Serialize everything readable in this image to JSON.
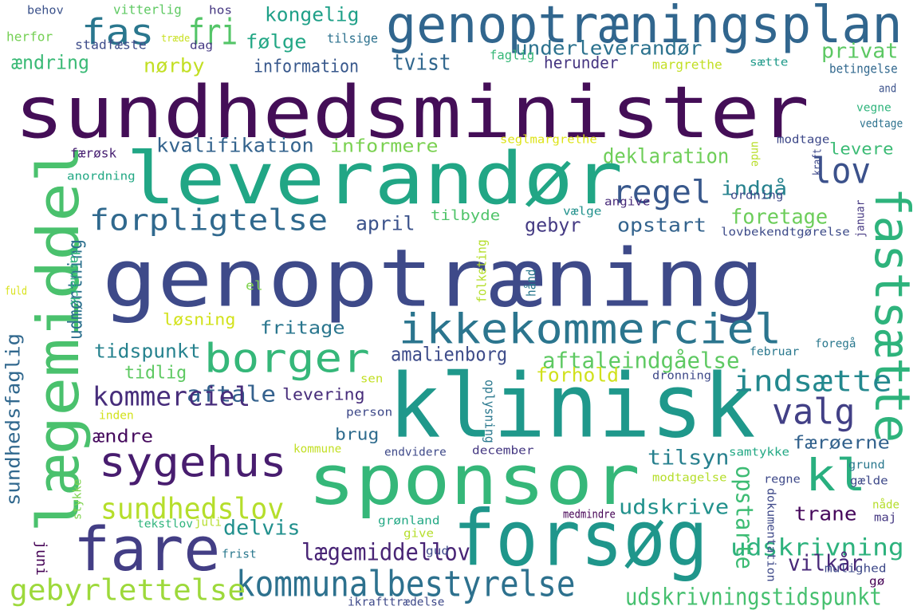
{
  "words": [
    {
      "text": "sundhedsminister",
      "color": "#440e57"
    },
    {
      "text": "genoptræning",
      "color": "#3e4a89"
    },
    {
      "text": "klinisk",
      "color": "#1f988b"
    },
    {
      "text": "sponsor",
      "color": "#35b779"
    },
    {
      "text": "leverandør",
      "color": "#21a685"
    },
    {
      "text": "forsøg",
      "color": "#1f968b"
    },
    {
      "text": "genoptræningsplan",
      "color": "#31668e"
    },
    {
      "text": "fare",
      "color": "#433e85"
    },
    {
      "text": "lægemiddel",
      "color": "#4ac16d"
    },
    {
      "text": "ikkekommerciel",
      "color": "#2b758e"
    },
    {
      "text": "sygehus",
      "color": "#481d6f"
    },
    {
      "text": "fastsætte",
      "color": "#2eb37c"
    },
    {
      "text": "borger",
      "color": "#35b779"
    },
    {
      "text": "kl",
      "color": "#29af7f"
    },
    {
      "text": "forpligtelse",
      "color": "#30698e"
    },
    {
      "text": "kommunalbestyrelse",
      "color": "#2d718e"
    },
    {
      "text": "lov",
      "color": "#3b518b"
    },
    {
      "text": "regel",
      "color": "#38588c"
    },
    {
      "text": "gebyrlettelse",
      "color": "#9dd93b"
    },
    {
      "text": "valg",
      "color": "#424086"
    },
    {
      "text": "sundhedslov",
      "color": "#b5de2b"
    },
    {
      "text": "fas",
      "color": "#2a778e"
    },
    {
      "text": "fri",
      "color": "#54c568"
    },
    {
      "text": "aftale",
      "color": "#34618d"
    },
    {
      "text": "kommerciel",
      "color": "#472d7b"
    },
    {
      "text": "indsætte",
      "color": "#23888e"
    },
    {
      "text": "udskrivning",
      "color": "#2db27d"
    },
    {
      "text": "udskrivningstidspunkt",
      "color": "#46c06f"
    },
    {
      "text": "udskrive",
      "color": "#21918c"
    },
    {
      "text": "lægemiddellov",
      "color": "#482475"
    },
    {
      "text": "delvis",
      "color": "#21908d"
    },
    {
      "text": "tidspunkt",
      "color": "#26828e"
    },
    {
      "text": "sundhedsfaglig",
      "color": "#31688e"
    },
    {
      "text": "vilkår",
      "color": "#482878"
    },
    {
      "text": "kvalifikation",
      "color": "#33638d"
    },
    {
      "text": "aftaleindgåelse",
      "color": "#5ec962"
    },
    {
      "text": "underleverandør",
      "color": "#2c728e"
    },
    {
      "text": "opstarte",
      "color": "#3dbc74"
    },
    {
      "text": "tilsyn",
      "color": "#27808e"
    },
    {
      "text": "foretage",
      "color": "#6ccd5a"
    },
    {
      "text": "deklaration",
      "color": "#6ece58"
    },
    {
      "text": "amalienborg",
      "color": "#3e4c8a"
    },
    {
      "text": "forhold",
      "color": "#d0e11c"
    },
    {
      "text": "kongelig",
      "color": "#1fa088"
    },
    {
      "text": "følge",
      "color": "#22a785"
    },
    {
      "text": "tvist",
      "color": "#31678e"
    },
    {
      "text": "privat",
      "color": "#5cc863"
    },
    {
      "text": "ændring",
      "color": "#3aba76"
    },
    {
      "text": "nørby",
      "color": "#c2df23"
    },
    {
      "text": "information",
      "color": "#38588c"
    },
    {
      "text": "informere",
      "color": "#7ad151"
    },
    {
      "text": "herunder",
      "color": "#453581"
    },
    {
      "text": "april",
      "color": "#3b528b"
    },
    {
      "text": "gebyr",
      "color": "#443a83"
    },
    {
      "text": "opstart",
      "color": "#33638d"
    },
    {
      "text": "indgå",
      "color": "#26828e"
    },
    {
      "text": "trane",
      "color": "#46085c"
    },
    {
      "text": "færøerne",
      "color": "#33628d"
    },
    {
      "text": "fritage",
      "color": "#2a768e"
    },
    {
      "text": "levering",
      "color": "#472c7a"
    },
    {
      "text": "tilbyde",
      "color": "#50c46a"
    },
    {
      "text": "tidlig",
      "color": "#5ec962"
    },
    {
      "text": "ændre",
      "color": "#460b5e"
    },
    {
      "text": "brug",
      "color": "#2f6c8e"
    },
    {
      "text": "udmøntning",
      "color": "#2d708e"
    },
    {
      "text": "levere",
      "color": "#3bbb75"
    },
    {
      "text": "løsning",
      "color": "#d2e21b"
    },
    {
      "text": "margrethe",
      "color": "#c2df23"
    },
    {
      "text": "betingelse",
      "color": "#31688e"
    },
    {
      "text": "faglig",
      "color": "#37b878"
    },
    {
      "text": "sætte",
      "color": "#1f9a8a"
    },
    {
      "text": "tilsige",
      "color": "#2c718e"
    },
    {
      "text": "dag",
      "color": "#443983"
    },
    {
      "text": "træde",
      "color": "#c8e020"
    },
    {
      "text": "stadfæste",
      "color": "#3e4c8a"
    },
    {
      "text": "behov",
      "color": "#3b528b"
    },
    {
      "text": "vitterlig",
      "color": "#5ec962"
    },
    {
      "text": "hos",
      "color": "#453781"
    },
    {
      "text": "herfor",
      "color": "#75d054"
    },
    {
      "text": "færøsk",
      "color": "#482173"
    },
    {
      "text": "anordning",
      "color": "#22a884"
    },
    {
      "text": "seglmargrethe",
      "color": "#dde318"
    },
    {
      "text": "unde",
      "color": "#b8de29"
    },
    {
      "text": "kraft",
      "color": "#3e4989"
    },
    {
      "text": "modtage",
      "color": "#3e4989"
    },
    {
      "text": "vedtage",
      "color": "#2c728e"
    },
    {
      "text": "vegne",
      "color": "#2fb47c"
    },
    {
      "text": "and",
      "color": "#3b528b"
    },
    {
      "text": "angive",
      "color": "#472a7a"
    },
    {
      "text": "vælge",
      "color": "#21918c"
    },
    {
      "text": "ordning",
      "color": "#3e4a89"
    },
    {
      "text": "januar",
      "color": "#453882"
    },
    {
      "text": "lovbekendtgørelse",
      "color": "#3e4c8a"
    },
    {
      "text": "folketing",
      "color": "#b5de2b"
    },
    {
      "text": "hånd",
      "color": "#2a788e"
    },
    {
      "text": "danmark",
      "color": "#2fb47c"
    },
    {
      "text": "fuld",
      "color": "#d8e219"
    },
    {
      "text": "el",
      "color": "#7fd34e"
    },
    {
      "text": "februar",
      "color": "#2a788e"
    },
    {
      "text": "foregå",
      "color": "#2a788e"
    },
    {
      "text": "dronning",
      "color": "#3e4989"
    },
    {
      "text": "sen",
      "color": "#c2df23"
    },
    {
      "text": "person",
      "color": "#3e4989"
    },
    {
      "text": "inden",
      "color": "#d2e21b"
    },
    {
      "text": "oplysning",
      "color": "#2a788e"
    },
    {
      "text": "kommune",
      "color": "#c2df23"
    },
    {
      "text": "endvidere",
      "color": "#3e4989"
    },
    {
      "text": "december",
      "color": "#453882"
    },
    {
      "text": "samtykke",
      "color": "#22a884"
    },
    {
      "text": "grund",
      "color": "#2a788e"
    },
    {
      "text": "stykke",
      "color": "#7fd34e"
    },
    {
      "text": "modtagelse",
      "color": "#b5de2b"
    },
    {
      "text": "regne",
      "color": "#3e4989"
    },
    {
      "text": "gælde",
      "color": "#3e4989"
    },
    {
      "text": "grønland",
      "color": "#22a884"
    },
    {
      "text": "give",
      "color": "#b5de2b"
    },
    {
      "text": "medmindre",
      "color": "#440154"
    },
    {
      "text": "dokumentation",
      "color": "#3e4989"
    },
    {
      "text": "nåde",
      "color": "#b5de2b"
    },
    {
      "text": "maj",
      "color": "#453882"
    },
    {
      "text": "tekstlov",
      "color": "#2fb47c"
    },
    {
      "text": "juli",
      "color": "#b5de2b"
    },
    {
      "text": "juni",
      "color": "#440154"
    },
    {
      "text": "frist",
      "color": "#2a788e"
    },
    {
      "text": "gud",
      "color": "#3e4989"
    },
    {
      "text": "mulighed",
      "color": "#3e4989"
    },
    {
      "text": "gø",
      "color": "#440154"
    },
    {
      "text": "ikrafttrædelse",
      "color": "#3e4989"
    }
  ]
}
